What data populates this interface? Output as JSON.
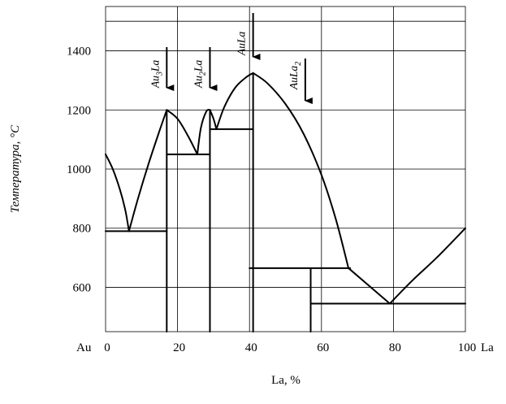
{
  "chart_data": {
    "type": "line",
    "xlabel": "La, %",
    "ylabel": "Температура, °С",
    "x_left_label": "Au",
    "x_right_label": "La",
    "xlim": [
      0,
      100
    ],
    "ylim": [
      450,
      1550
    ],
    "x_ticks": [
      0,
      20,
      40,
      60,
      80,
      100
    ],
    "y_ticks": [
      600,
      800,
      1000,
      1200,
      1400
    ],
    "grid": true,
    "compounds": [
      {
        "label": "Au",
        "sub": "3",
        "label2": "La",
        "x": 17
      },
      {
        "label": "Au",
        "sub": "2",
        "label2": "La",
        "x": 29
      },
      {
        "label": "AuLa",
        "sub": "",
        "label2": "",
        "x": 41
      },
      {
        "label": "AuLa",
        "sub": "2",
        "label2": "",
        "x": 55.5
      }
    ],
    "liquidus": [
      {
        "points": [
          [
            0,
            1050
          ],
          [
            2,
            1000
          ],
          [
            4,
            930
          ],
          [
            5.5,
            860
          ],
          [
            6.5,
            790
          ]
        ]
      },
      {
        "points": [
          [
            6.5,
            790
          ],
          [
            9,
            900
          ],
          [
            12,
            1020
          ],
          [
            15,
            1130
          ],
          [
            17,
            1200
          ]
        ]
      },
      {
        "points": [
          [
            17,
            1200
          ],
          [
            20,
            1170
          ],
          [
            23,
            1110
          ],
          [
            25.5,
            1050
          ]
        ]
      },
      {
        "points": [
          [
            25.5,
            1050
          ],
          [
            26.5,
            1140
          ],
          [
            28,
            1195
          ],
          [
            29,
            1200
          ]
        ]
      },
      {
        "points": [
          [
            29,
            1200
          ],
          [
            30,
            1170
          ],
          [
            30.8,
            1135
          ]
        ]
      },
      {
        "points": [
          [
            30.8,
            1135
          ],
          [
            33,
            1210
          ],
          [
            36,
            1275
          ],
          [
            39,
            1310
          ],
          [
            41,
            1325
          ]
        ]
      },
      {
        "points": [
          [
            41,
            1325
          ],
          [
            45,
            1290
          ],
          [
            50,
            1220
          ],
          [
            55,
            1120
          ],
          [
            60,
            980
          ],
          [
            64,
            830
          ],
          [
            67.5,
            665
          ]
        ]
      },
      {
        "points": [
          [
            67.5,
            665
          ],
          [
            79,
            545
          ]
        ]
      },
      {
        "points": [
          [
            79,
            545
          ],
          [
            85,
            620
          ],
          [
            92,
            700
          ],
          [
            100,
            800
          ]
        ]
      }
    ],
    "horizontals": [
      {
        "x": [
          0,
          17
        ],
        "y": 790
      },
      {
        "x": [
          17,
          29
        ],
        "y": 1050
      },
      {
        "x": [
          29,
          41
        ],
        "y": 1135
      },
      {
        "x": [
          40,
          68
        ],
        "y": 665
      },
      {
        "x": [
          57,
          100
        ],
        "y": 545
      }
    ],
    "verticals": [
      {
        "x": 17,
        "y": [
          450,
          1200
        ]
      },
      {
        "x": 29,
        "y": [
          450,
          1200
        ]
      },
      {
        "x": 41,
        "y": [
          450,
          1325
        ]
      },
      {
        "x": 57,
        "y": [
          450,
          665
        ]
      }
    ]
  }
}
